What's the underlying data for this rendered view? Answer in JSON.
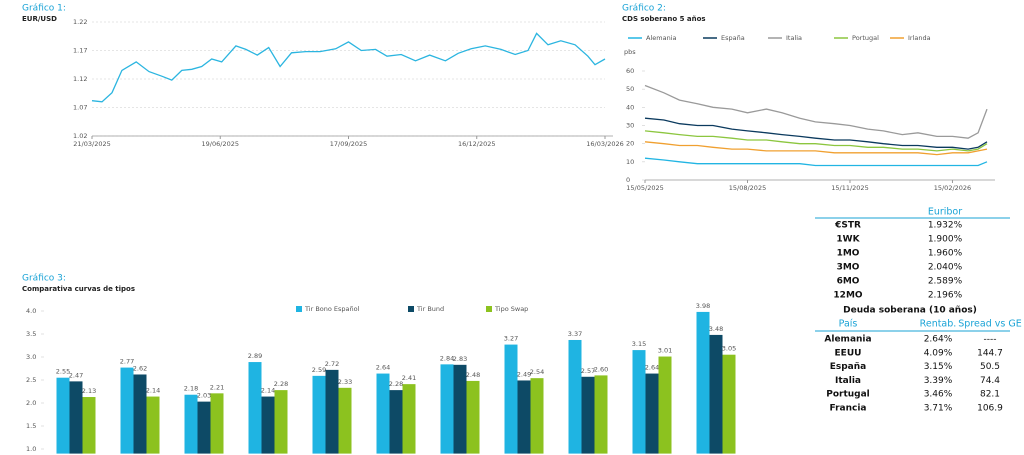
{
  "chart_data": [
    {
      "type": "line",
      "label": "Gráfico 1:",
      "title": "EUR/USD",
      "x": [
        "21/03/2025",
        "28/03/2025",
        "04/04/2025",
        "11/04/2025",
        "21/04/2025",
        "30/04/2025",
        "09/05/2025",
        "16/05/2025",
        "23/05/2025",
        "30/05/2025",
        "06/06/2025",
        "13/06/2025",
        "20/06/2025",
        "30/06/2025",
        "07/07/2025",
        "15/07/2025",
        "23/07/2025",
        "31/07/2025",
        "08/08/2025",
        "18/08/2025",
        "28/08/2025",
        "08/09/2025",
        "17/09/2025",
        "26/09/2025",
        "06/10/2025",
        "14/10/2025",
        "24/10/2025",
        "03/11/2025",
        "13/11/2025",
        "24/11/2025",
        "03/12/2025",
        "12/12/2025",
        "22/12/2025",
        "02/01/2026",
        "12/01/2026",
        "21/01/2026",
        "27/01/2026",
        "04/02/2026",
        "13/02/2026",
        "23/02/2026",
        "04/03/2026",
        "09/03/2026",
        "16/03/2026"
      ],
      "series": [
        {
          "color": "#2bb5e0",
          "values": [
            1.082,
            1.08,
            1.096,
            1.135,
            1.15,
            1.133,
            1.125,
            1.118,
            1.135,
            1.137,
            1.142,
            1.155,
            1.15,
            1.178,
            1.172,
            1.162,
            1.175,
            1.142,
            1.166,
            1.168,
            1.168,
            1.173,
            1.185,
            1.17,
            1.172,
            1.16,
            1.163,
            1.152,
            1.162,
            1.152,
            1.165,
            1.173,
            1.178,
            1.172,
            1.163,
            1.17,
            1.2,
            1.18,
            1.187,
            1.18,
            1.16,
            1.145,
            1.155
          ]
        }
      ],
      "xlim": [
        "21/03/2025",
        "16/03/2026"
      ],
      "xticks": [
        "21/03/2025",
        "19/06/2025",
        "17/09/2025",
        "16/12/2025",
        "16/03/2026"
      ],
      "ylim": [
        1.02,
        1.22
      ],
      "yticks": [
        1.02,
        1.07,
        1.12,
        1.17,
        1.22
      ],
      "grid": true
    },
    {
      "type": "line",
      "label": "Gráfico 2:",
      "title": "CDS soberano 5 años",
      "y_label": "pbs",
      "x": [
        "15/05/2025",
        "01/06/2025",
        "15/06/2025",
        "01/07/2025",
        "15/07/2025",
        "01/08/2025",
        "15/08/2025",
        "01/09/2025",
        "15/09/2025",
        "01/10/2025",
        "15/10/2025",
        "01/11/2025",
        "15/11/2025",
        "01/12/2025",
        "15/12/2025",
        "01/01/2026",
        "15/01/2026",
        "01/02/2026",
        "15/02/2026",
        "01/03/2026",
        "10/03/2026",
        "18/03/2026"
      ],
      "series": [
        {
          "name": "Alemania",
          "color": "#22b5e3",
          "values": [
            12,
            11,
            10,
            9,
            9,
            9,
            9,
            9,
            9,
            9,
            8,
            8,
            8,
            8,
            8,
            8,
            8,
            8,
            8,
            8,
            8,
            10
          ]
        },
        {
          "name": "España",
          "color": "#0b3a5e",
          "values": [
            34,
            33,
            31,
            30,
            30,
            28,
            27,
            26,
            25,
            24,
            23,
            22,
            22,
            21,
            20,
            19,
            19,
            18,
            18,
            17,
            18,
            21
          ]
        },
        {
          "name": "Italia",
          "color": "#9a9a9a",
          "values": [
            52,
            48,
            44,
            42,
            40,
            39,
            37,
            39,
            37,
            34,
            32,
            31,
            30,
            28,
            27,
            25,
            26,
            24,
            24,
            23,
            26,
            39
          ]
        },
        {
          "name": "Portugal",
          "color": "#8cc63f",
          "values": [
            27,
            26,
            25,
            24,
            24,
            23,
            22,
            22,
            21,
            20,
            20,
            19,
            19,
            18,
            18,
            17,
            17,
            16,
            17,
            16,
            17,
            20
          ]
        },
        {
          "name": "Irlanda",
          "color": "#f0a030",
          "values": [
            21,
            20,
            19,
            19,
            18,
            17,
            17,
            16,
            16,
            16,
            16,
            15,
            15,
            15,
            15,
            15,
            15,
            14,
            15,
            15,
            16,
            17
          ]
        }
      ],
      "xlim": [
        "15/05/2025",
        "18/03/2026"
      ],
      "xticks": [
        "15/05/2025",
        "15/08/2025",
        "15/11/2025",
        "15/02/2026"
      ],
      "ylim": [
        0,
        60
      ],
      "yticks": [
        0,
        10,
        20,
        30,
        40,
        50,
        60
      ],
      "grid": false
    },
    {
      "type": "bar",
      "label": "Gráfico 3:",
      "title": "Comparativa curvas de tipos",
      "categories": [
        null,
        null,
        null,
        null,
        null,
        null,
        null,
        null,
        null,
        null,
        null
      ],
      "series": [
        {
          "name": "Tir Bono Español",
          "color": "#1fb4e2",
          "values": [
            2.55,
            2.77,
            2.18,
            2.89,
            2.59,
            2.64,
            2.84,
            3.27,
            3.37,
            3.15,
            3.98
          ],
          "value_labels": [
            "2.55",
            "2.77",
            "2.18",
            "2.89",
            "2.59",
            "2.64",
            "2.84",
            "3.27",
            "3.37",
            "3.15",
            "3.98"
          ]
        },
        {
          "name": "Tir Bund",
          "color": "#0d4a66",
          "values": [
            2.47,
            2.62,
            2.03,
            2.14,
            2.72,
            2.28,
            2.83,
            2.49,
            2.57,
            2.64,
            3.48
          ],
          "value_labels": [
            "2.47",
            "2.62",
            "2.03",
            "2.14",
            "2.72",
            "2.28",
            "2.83",
            "2.49",
            "2.57",
            "2.64",
            "3.48"
          ]
        },
        {
          "name": "Tipo Swap",
          "color": "#8cc21f",
          "values": [
            2.13,
            2.14,
            2.21,
            2.28,
            2.33,
            2.41,
            2.48,
            2.54,
            2.6,
            3.01,
            3.05
          ],
          "value_labels": [
            "2.13",
            "2.14",
            "2.21",
            "2.28",
            "2.33",
            "2.41",
            "2.48",
            "2.54",
            "2.60",
            "3.01",
            "3.05"
          ]
        }
      ],
      "ylim": [
        0.9,
        4.2
      ],
      "yticks": [
        {
          "value": 1,
          "label": "1.0"
        },
        {
          "value": 1.5,
          "label": "1.5"
        },
        {
          "value": 2,
          "label": "2.0"
        },
        {
          "value": 2.5,
          "label": "2.5"
        },
        {
          "value": 3,
          "label": "3.0"
        },
        {
          "value": 3.5,
          "label": "3.5"
        },
        {
          "value": 4,
          "label": "4.0"
        }
      ],
      "grid": false
    }
  ],
  "tables": {
    "euribor": {
      "title": "Euribor",
      "rows": [
        [
          "€STR",
          "1.932%"
        ],
        [
          "1WK",
          "1.900%"
        ],
        [
          "1MO",
          "1.960%"
        ],
        [
          "3MO",
          "2.040%"
        ],
        [
          "6MO",
          "2.589%"
        ],
        [
          "12MO",
          "2.196%"
        ]
      ]
    },
    "deuda": {
      "title": "Deuda soberana (10 años)",
      "headers": [
        "País",
        "Rentab.",
        "Spread vs GE"
      ],
      "rows": [
        [
          "Alemania",
          "2.64%",
          "----"
        ],
        [
          "EEUU",
          "4.09%",
          "144.7"
        ],
        [
          "España",
          "3.15%",
          "50.5"
        ],
        [
          "Italia",
          "3.39%",
          "74.4"
        ],
        [
          "Portugal",
          "3.46%",
          "82.1"
        ],
        [
          "Francia",
          "3.71%",
          "106.9"
        ]
      ]
    }
  }
}
